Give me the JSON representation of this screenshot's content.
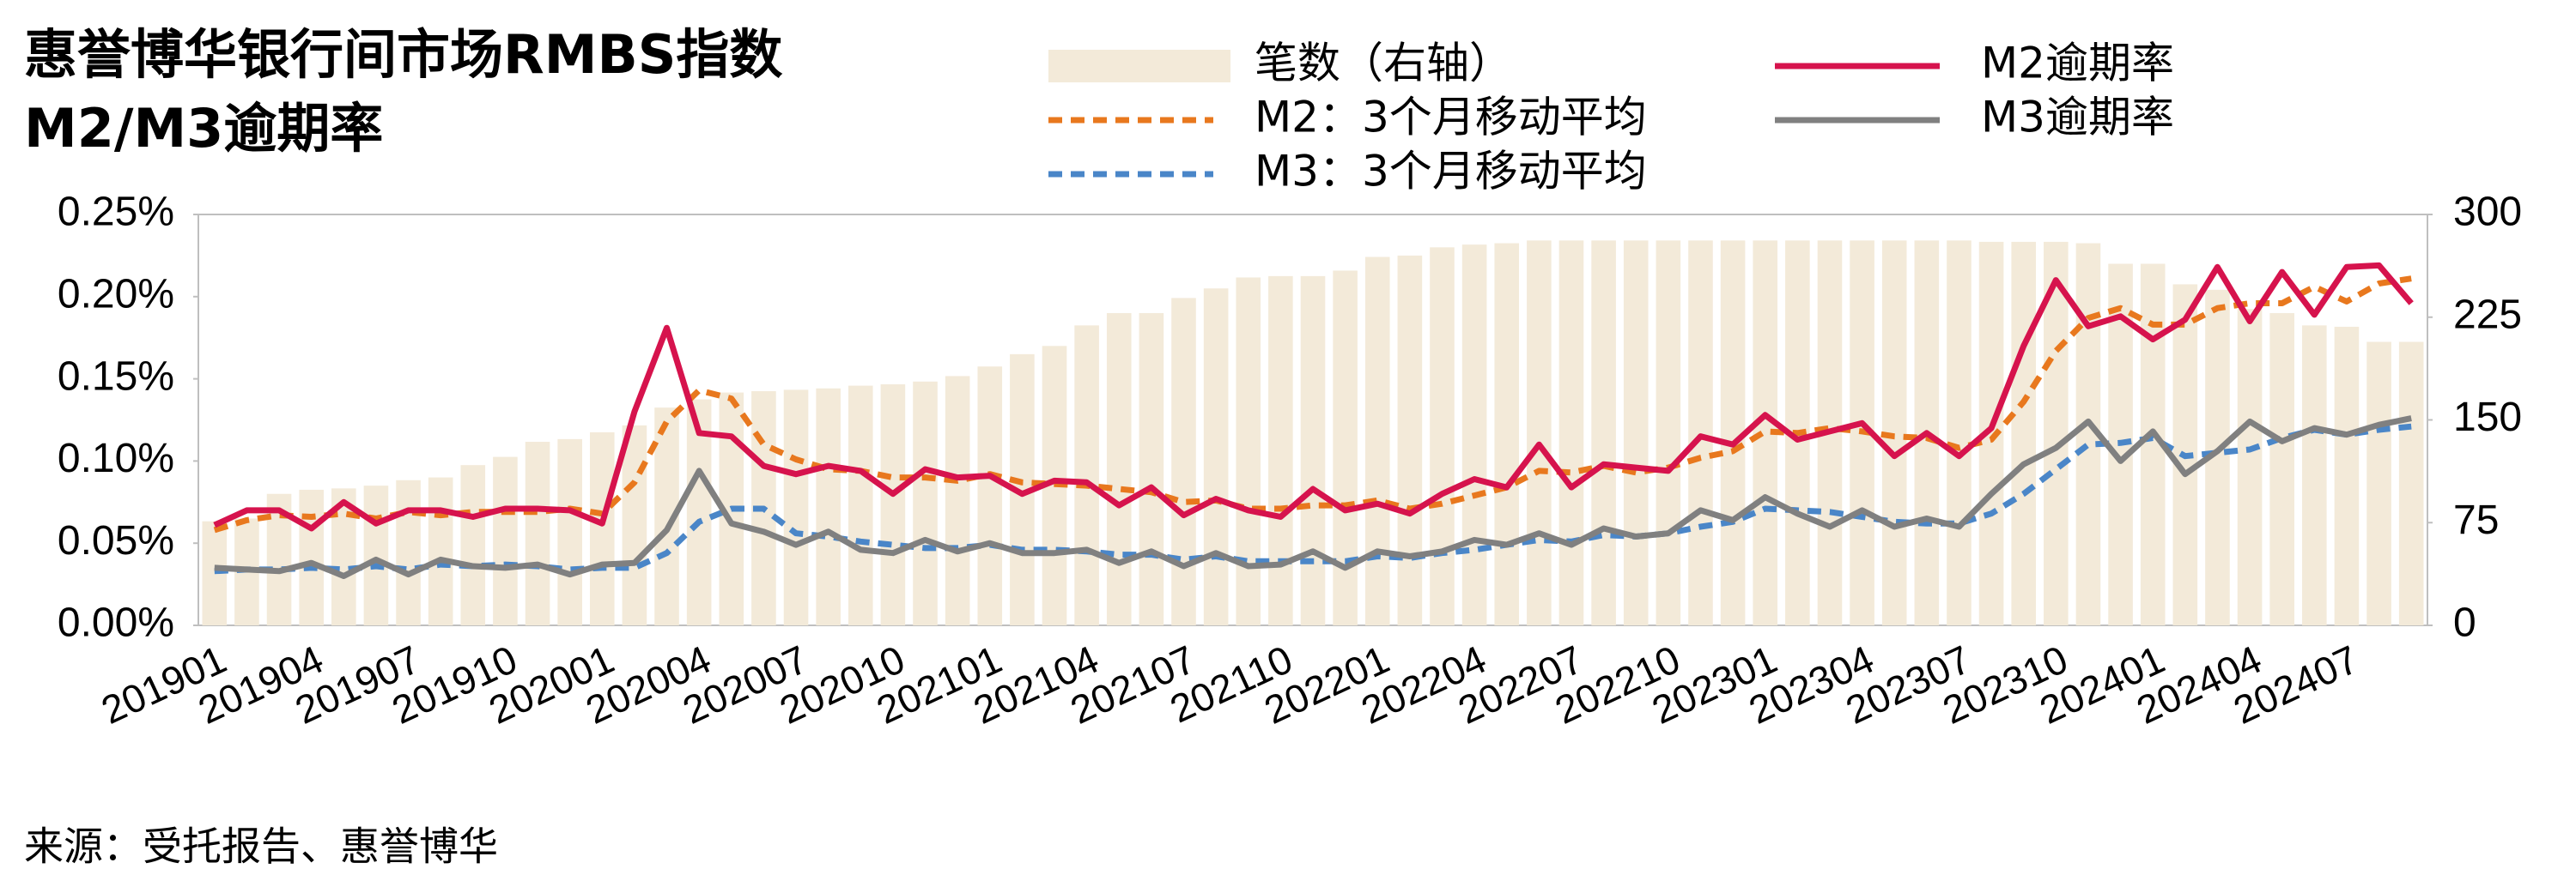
{
  "chart_data": {
    "type": "combo",
    "title": "惠誉博华银行间市场RMBS指数",
    "subtitle": "M2/M3逾期率",
    "source": "来源：受托报告、惠誉博华",
    "categories": [
      "201901",
      null,
      null,
      "201904",
      null,
      null,
      "201907",
      null,
      null,
      "201910",
      null,
      null,
      "202001",
      null,
      null,
      "202004",
      null,
      null,
      "202007",
      null,
      null,
      "202010",
      null,
      null,
      "202101",
      null,
      null,
      "202104",
      null,
      null,
      "202107",
      null,
      null,
      "202110",
      null,
      null,
      "202201",
      null,
      null,
      "202204",
      null,
      null,
      "202207",
      null,
      null,
      "202210",
      null,
      null,
      "202301",
      null,
      null,
      "202304",
      null,
      null,
      "202307",
      null,
      null,
      "202310",
      null,
      null,
      "202401",
      null,
      null,
      "202404",
      null,
      null,
      "202407",
      null,
      null
    ],
    "ylim": [
      0,
      0.25
    ],
    "yticks": [
      {
        "value": 0,
        "label": "0.00%"
      },
      {
        "value": 0.05,
        "label": "0.05%"
      },
      {
        "value": 0.1,
        "label": "0.10%"
      },
      {
        "value": 0.15,
        "label": "0.15%"
      },
      {
        "value": 0.2,
        "label": "0.20%"
      },
      {
        "value": 0.25,
        "label": "0.25%"
      }
    ],
    "y2lim": [
      0,
      300
    ],
    "y2ticks": [
      0,
      75,
      150,
      225,
      300
    ],
    "series": [
      {
        "name": "笔数（右轴）",
        "type": "bar",
        "axis": "y2",
        "color": "#f3ead9",
        "values": [
          76,
          78,
          96,
          99,
          100,
          102,
          106,
          108,
          117,
          123,
          134,
          136,
          141,
          146,
          159,
          165,
          170,
          171,
          172,
          173,
          175,
          176,
          178,
          182,
          189,
          198,
          204,
          219,
          228,
          228,
          239,
          246,
          254,
          255,
          255,
          259,
          269,
          270,
          276,
          278,
          279,
          281,
          281,
          281,
          281,
          281,
          281,
          281,
          281,
          281,
          281,
          281,
          281,
          281,
          281,
          280,
          280,
          280,
          279,
          264,
          264,
          249,
          245,
          231,
          228,
          219,
          218,
          207,
          207
        ]
      },
      {
        "name": "M2逾期率",
        "type": "line",
        "color": "#d6134d",
        "values": [
          0.061,
          0.07,
          0.07,
          0.059,
          0.075,
          0.062,
          0.07,
          0.07,
          0.066,
          0.071,
          0.071,
          0.07,
          0.062,
          0.13,
          0.181,
          0.117,
          0.115,
          0.097,
          0.092,
          0.097,
          0.094,
          0.08,
          0.095,
          0.09,
          0.091,
          0.08,
          0.088,
          0.087,
          0.073,
          0.084,
          0.067,
          0.077,
          0.07,
          0.066,
          0.083,
          0.07,
          0.074,
          0.068,
          0.08,
          0.089,
          0.084,
          0.11,
          0.084,
          0.098,
          0.096,
          0.094,
          0.115,
          0.11,
          0.128,
          0.113,
          0.118,
          0.123,
          0.103,
          0.117,
          0.103,
          0.12,
          0.17,
          0.21,
          0.182,
          0.188,
          0.174,
          0.186,
          0.218,
          0.185,
          0.215,
          0.189,
          0.218,
          0.219,
          0.196
        ]
      },
      {
        "name": "M2：3个月移动平均",
        "type": "line",
        "dashed": true,
        "color": "#e8781e",
        "values": [
          0.058,
          0.064,
          0.067,
          0.066,
          0.068,
          0.065,
          0.069,
          0.067,
          0.069,
          0.069,
          0.069,
          0.071,
          0.068,
          0.087,
          0.124,
          0.143,
          0.138,
          0.11,
          0.101,
          0.095,
          0.094,
          0.09,
          0.09,
          0.088,
          0.092,
          0.087,
          0.086,
          0.085,
          0.083,
          0.081,
          0.075,
          0.076,
          0.071,
          0.071,
          0.073,
          0.073,
          0.076,
          0.071,
          0.074,
          0.079,
          0.084,
          0.094,
          0.093,
          0.097,
          0.093,
          0.096,
          0.102,
          0.106,
          0.118,
          0.117,
          0.12,
          0.118,
          0.115,
          0.114,
          0.108,
          0.113,
          0.136,
          0.167,
          0.187,
          0.193,
          0.183,
          0.183,
          0.193,
          0.196,
          0.196,
          0.206,
          0.197,
          0.208,
          0.211
        ]
      },
      {
        "name": "M3逾期率",
        "type": "line",
        "color": "#808080",
        "values": [
          0.035,
          0.034,
          0.033,
          0.038,
          0.03,
          0.04,
          0.031,
          0.04,
          0.036,
          0.035,
          0.037,
          0.031,
          0.037,
          0.038,
          0.058,
          0.094,
          0.062,
          0.057,
          0.049,
          0.057,
          0.046,
          0.044,
          0.052,
          0.045,
          0.05,
          0.044,
          0.044,
          0.046,
          0.038,
          0.045,
          0.036,
          0.044,
          0.036,
          0.037,
          0.045,
          0.035,
          0.045,
          0.042,
          0.045,
          0.052,
          0.049,
          0.056,
          0.049,
          0.059,
          0.054,
          0.056,
          0.07,
          0.064,
          0.078,
          0.068,
          0.06,
          0.07,
          0.06,
          0.065,
          0.06,
          0.08,
          0.098,
          0.108,
          0.124,
          0.1,
          0.118,
          0.092,
          0.106,
          0.124,
          0.112,
          0.12,
          0.116,
          0.122,
          0.126
        ]
      },
      {
        "name": "M3：3个月移动平均",
        "type": "line",
        "dashed": true,
        "color": "#4a86c8",
        "values": [
          0.033,
          0.034,
          0.034,
          0.035,
          0.034,
          0.036,
          0.034,
          0.037,
          0.036,
          0.037,
          0.036,
          0.034,
          0.035,
          0.035,
          0.044,
          0.063,
          0.071,
          0.071,
          0.056,
          0.054,
          0.051,
          0.049,
          0.047,
          0.047,
          0.049,
          0.046,
          0.046,
          0.045,
          0.043,
          0.043,
          0.04,
          0.042,
          0.039,
          0.039,
          0.039,
          0.039,
          0.042,
          0.041,
          0.044,
          0.046,
          0.049,
          0.052,
          0.051,
          0.055,
          0.054,
          0.056,
          0.06,
          0.063,
          0.071,
          0.07,
          0.069,
          0.066,
          0.063,
          0.062,
          0.062,
          0.068,
          0.08,
          0.095,
          0.11,
          0.111,
          0.114,
          0.103,
          0.105,
          0.107,
          0.114,
          0.119,
          0.116,
          0.119,
          0.121
        ]
      }
    ]
  }
}
